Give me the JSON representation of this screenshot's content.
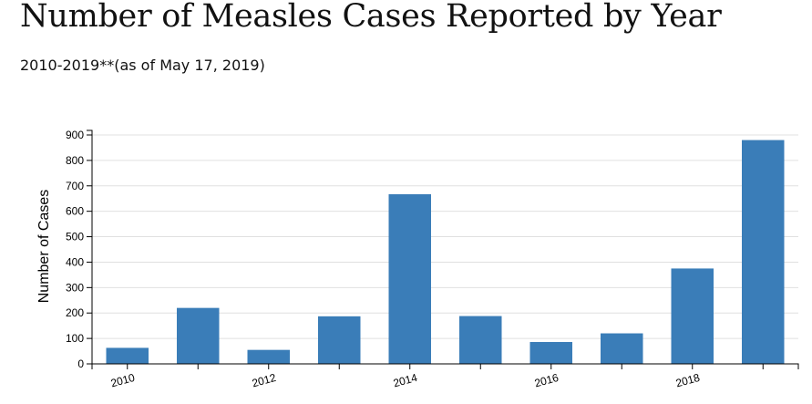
{
  "header": {
    "title": "Number of Measles Cases Reported by Year",
    "subtitle": "2010-2019**(as of May 17, 2019)"
  },
  "chart_data": {
    "type": "bar",
    "title": "Number of Measles Cases Reported by Year",
    "subtitle": "2010-2019**(as of May 17, 2019)",
    "xlabel": "",
    "ylabel": "Number of Cases",
    "categories": [
      "2010",
      "2011",
      "2012",
      "2013",
      "2014",
      "2015",
      "2016",
      "2017",
      "2018",
      "2019"
    ],
    "x_tick_labels": [
      "2010",
      "2012",
      "2014",
      "2016",
      "2018"
    ],
    "values": [
      63,
      220,
      55,
      187,
      667,
      188,
      86,
      120,
      375,
      880
    ],
    "y_ticks": [
      0,
      100,
      200,
      300,
      400,
      500,
      600,
      700,
      800,
      900
    ],
    "ylim": [
      0,
      918
    ],
    "grid": true,
    "bar_color": "#3a7db8",
    "grid_color": "#e0e0e0"
  }
}
